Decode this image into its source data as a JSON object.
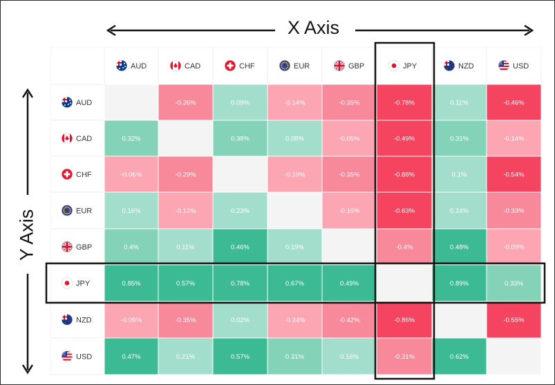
{
  "chart_data": {
    "type": "heatmap",
    "x_axis_title": "X Axis",
    "y_axis_title": "Y Axis",
    "columns": [
      "AUD",
      "CAD",
      "CHF",
      "EUR",
      "GBP",
      "JPY",
      "NZD",
      "USD"
    ],
    "rows": [
      "AUD",
      "CAD",
      "CHF",
      "EUR",
      "GBP",
      "JPY",
      "NZD",
      "USD"
    ],
    "values": [
      [
        null,
        -0.26,
        0.09,
        -0.14,
        -0.35,
        -0.78,
        0.11,
        -0.46
      ],
      [
        0.32,
        null,
        0.38,
        0.08,
        -0.05,
        -0.49,
        0.31,
        -0.14
      ],
      [
        -0.06,
        -0.29,
        null,
        -0.19,
        -0.35,
        -0.88,
        0.1,
        -0.54
      ],
      [
        0.16,
        -0.12,
        0.23,
        null,
        -0.15,
        -0.63,
        0.24,
        -0.33
      ],
      [
        0.4,
        0.11,
        0.46,
        0.19,
        null,
        -0.4,
        0.48,
        -0.09
      ],
      [
        0.85,
        0.57,
        0.78,
        0.67,
        0.49,
        null,
        0.89,
        0.33
      ],
      [
        -0.09,
        -0.35,
        0.02,
        -0.24,
        -0.42,
        -0.86,
        null,
        -0.55
      ],
      [
        0.47,
        0.21,
        0.57,
        0.31,
        0.16,
        -0.31,
        0.62,
        null
      ]
    ],
    "highlighted_column": "JPY",
    "highlighted_row": "JPY",
    "colors": {
      "pos_light": "#a3ddcb",
      "pos_mid": "#84d2b8",
      "pos_strong": "#3cba93",
      "neg_light": "#fba6b2",
      "neg_mid": "#f7899a",
      "neg_strong": "#f4445f",
      "empty": "#f4f4f4",
      "grid": "#ececec"
    },
    "flags": {
      "AUD": "flag-australia",
      "CAD": "flag-canada",
      "CHF": "flag-switzerland",
      "EUR": "flag-european-union",
      "GBP": "flag-united-kingdom",
      "JPY": "flag-japan",
      "NZD": "flag-new-zealand",
      "USD": "flag-united-states"
    }
  }
}
